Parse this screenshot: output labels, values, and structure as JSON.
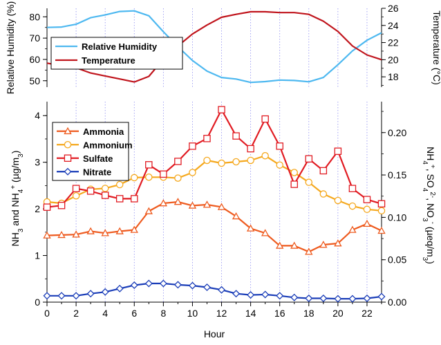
{
  "chart_data": [
    {
      "type": "line",
      "x": [
        0,
        1,
        2,
        3,
        4,
        5,
        6,
        7,
        8,
        9,
        10,
        11,
        12,
        13,
        14,
        15,
        16,
        17,
        18,
        19,
        20,
        21,
        22,
        23
      ],
      "xlim": [
        0,
        23
      ],
      "xticks": [
        0,
        2,
        4,
        6,
        8,
        10,
        12,
        14,
        16,
        18,
        20,
        22
      ],
      "vgrid": "dotted vertical lines at even hours",
      "left_axis": {
        "label": "Relative Humidity (%)",
        "ylim": [
          47,
          84
        ],
        "ticks": [
          50,
          60,
          70,
          80
        ]
      },
      "right_axis": {
        "label": "Temperature (°C)",
        "ylim": [
          16.8,
          26
        ],
        "ticks": [
          18,
          20,
          22,
          24,
          26
        ]
      },
      "legend_position": "top-left",
      "series": [
        {
          "name": "Relative Humidity",
          "axis": "left",
          "color": "#4db8f0",
          "values": [
            75,
            75.2,
            76.5,
            79.6,
            80.9,
            82.5,
            82.8,
            80.5,
            73,
            66,
            59.5,
            54.5,
            51.5,
            50.8,
            49.2,
            49.6,
            50.3,
            50.1,
            49.5,
            51.5,
            57.5,
            64,
            69,
            72.5
          ]
        },
        {
          "name": "Temperature",
          "axis": "right",
          "color": "#c0141c",
          "values": [
            19.6,
            19.3,
            19.05,
            18.45,
            18.1,
            17.75,
            17.4,
            18.05,
            20.05,
            21.6,
            23,
            24.05,
            24.95,
            25.3,
            25.6,
            25.6,
            25.5,
            25.5,
            25.3,
            24.5,
            23.3,
            21.6,
            20.55,
            20
          ]
        }
      ]
    },
    {
      "type": "line",
      "x": [
        0,
        1,
        2,
        3,
        4,
        5,
        6,
        7,
        8,
        9,
        10,
        11,
        12,
        13,
        14,
        15,
        16,
        17,
        18,
        19,
        20,
        21,
        22,
        23
      ],
      "xlim": [
        0,
        23
      ],
      "xticks": [
        0,
        2,
        4,
        6,
        8,
        10,
        12,
        14,
        16,
        18,
        20,
        22
      ],
      "xlabel": "Hour",
      "left_axis": {
        "label_parts": [
          "NH",
          "3",
          " and NH",
          "4",
          "+",
          " (µg/m",
          "3",
          ")"
        ],
        "ylim": [
          0,
          4.3
        ],
        "ticks": [
          0,
          1,
          2,
          3,
          4
        ]
      },
      "right_axis": {
        "label_parts": [
          "NH",
          "4",
          "+",
          ", SO",
          "4",
          "2-",
          ", NO",
          "3",
          "-",
          " (µeq/m",
          "3",
          ")"
        ],
        "ylim": [
          0,
          0.2365
        ],
        "ticks": [
          0.0,
          0.05,
          0.1,
          0.15,
          0.2
        ],
        "tick_labels": [
          "0.00",
          "0.05",
          "0.10",
          "0.15",
          "0.20"
        ]
      },
      "legend_position": "top-left",
      "series": [
        {
          "name": "Ammonia",
          "axis": "left",
          "color": "#ee5a1e",
          "marker": "triangle",
          "values": [
            1.43,
            1.44,
            1.45,
            1.52,
            1.48,
            1.52,
            1.55,
            1.95,
            2.12,
            2.15,
            2.07,
            2.09,
            2.04,
            1.84,
            1.58,
            1.48,
            1.21,
            1.21,
            1.08,
            1.23,
            1.26,
            1.55,
            1.68,
            1.53
          ]
        },
        {
          "name": "Ammonium",
          "axis": "left",
          "color": "#f5a81d",
          "marker": "circle",
          "values": [
            2.15,
            2.12,
            2.28,
            2.42,
            2.44,
            2.52,
            2.67,
            2.68,
            2.68,
            2.66,
            2.78,
            3.04,
            2.98,
            3.01,
            3.04,
            3.14,
            2.94,
            2.78,
            2.57,
            2.32,
            2.18,
            2.06,
            1.99,
            1.96
          ]
        },
        {
          "name": "Sulfate",
          "axis": "right",
          "color": "#e11b22",
          "marker": "square",
          "values": [
            0.112,
            0.114,
            0.134,
            0.131,
            0.126,
            0.122,
            0.122,
            0.162,
            0.151,
            0.166,
            0.184,
            0.193,
            0.227,
            0.196,
            0.181,
            0.216,
            0.184,
            0.139,
            0.169,
            0.155,
            0.178,
            0.134,
            0.121,
            0.116
          ]
        },
        {
          "name": "Nitrate",
          "axis": "right",
          "color": "#1a3db8",
          "marker": "diamond",
          "values": [
            0.0075,
            0.0075,
            0.0075,
            0.01,
            0.012,
            0.016,
            0.02,
            0.022,
            0.022,
            0.0205,
            0.0195,
            0.0175,
            0.0145,
            0.01,
            0.0085,
            0.009,
            0.0075,
            0.0055,
            0.0045,
            0.0045,
            0.004,
            0.004,
            0.0045,
            0.0065
          ]
        }
      ]
    }
  ]
}
